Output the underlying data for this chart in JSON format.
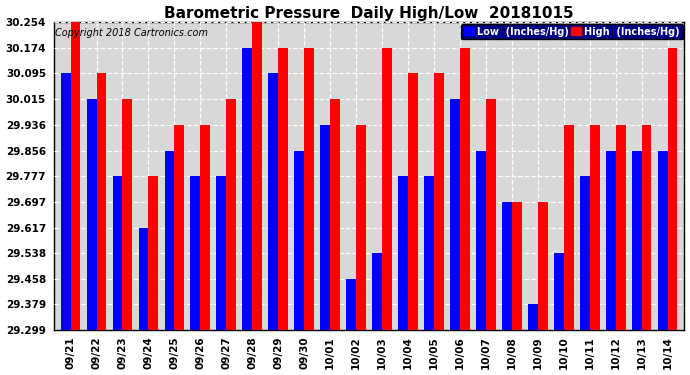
{
  "title": "Barometric Pressure  Daily High/Low  20181015",
  "copyright": "Copyright 2018 Cartronics.com",
  "legend_low": "Low  (Inches/Hg)",
  "legend_high": "High  (Inches/Hg)",
  "categories": [
    "09/21",
    "09/22",
    "09/23",
    "09/24",
    "09/25",
    "09/26",
    "09/27",
    "09/28",
    "09/29",
    "09/30",
    "10/01",
    "10/02",
    "10/03",
    "10/04",
    "10/05",
    "10/06",
    "10/07",
    "10/08",
    "10/09",
    "10/10",
    "10/11",
    "10/12",
    "10/13",
    "10/14"
  ],
  "low": [
    30.095,
    30.015,
    29.777,
    29.617,
    29.856,
    29.777,
    29.777,
    30.174,
    30.095,
    29.856,
    29.936,
    29.458,
    29.538,
    29.777,
    29.777,
    30.015,
    29.856,
    29.697,
    29.379,
    29.538,
    29.777,
    29.856,
    29.856,
    29.856
  ],
  "high": [
    30.254,
    30.095,
    30.015,
    29.777,
    29.936,
    29.936,
    30.015,
    30.254,
    30.174,
    30.174,
    30.015,
    29.936,
    30.174,
    30.095,
    30.095,
    30.174,
    30.015,
    29.697,
    29.697,
    29.936,
    29.936,
    29.936,
    29.936,
    30.174
  ],
  "low_color": "#0000ff",
  "high_color": "#ff0000",
  "bg_color": "#ffffff",
  "plot_bg_color": "#d8d8d8",
  "ylim_min": 29.299,
  "ylim_max": 30.254,
  "yticks": [
    29.299,
    29.379,
    29.458,
    29.538,
    29.617,
    29.697,
    29.777,
    29.856,
    29.936,
    30.015,
    30.095,
    30.174,
    30.254
  ],
  "title_fontsize": 11,
  "copyright_fontsize": 7,
  "tick_fontsize": 7.5,
  "bar_width": 0.38,
  "bar_bottom": 29.299,
  "grid_color": "#ffffff",
  "legend_bg": "#000080"
}
